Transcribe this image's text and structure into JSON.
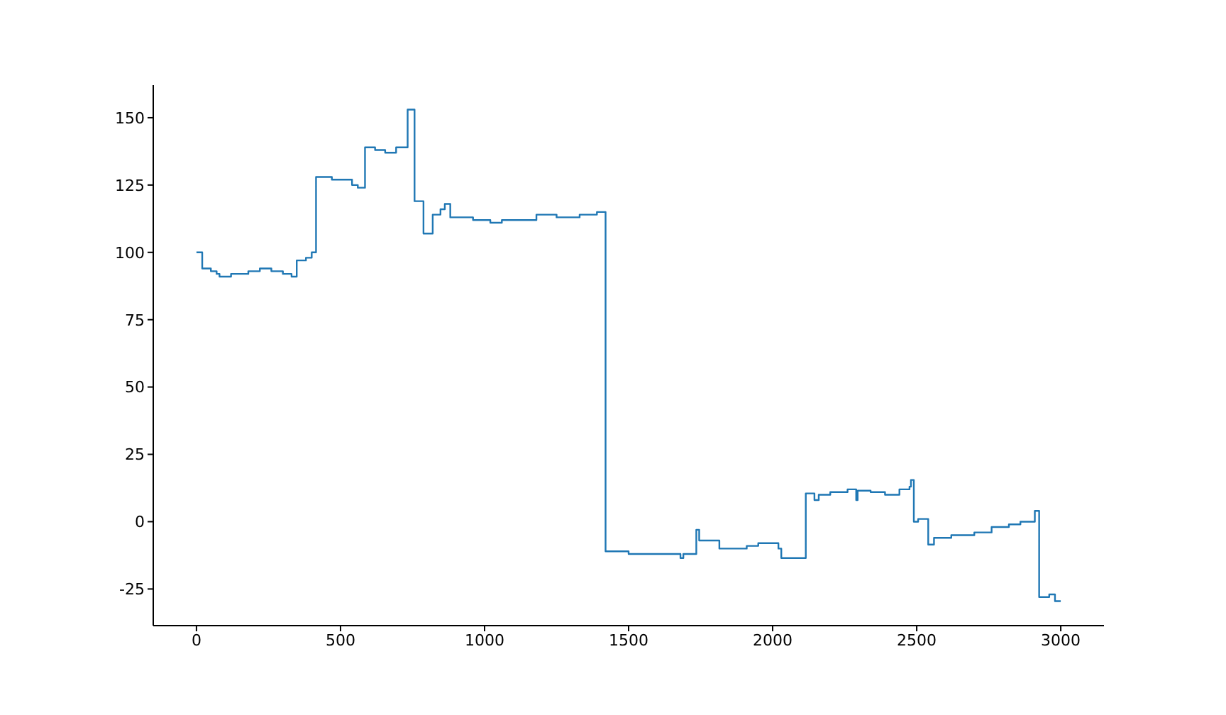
{
  "chart_data": {
    "type": "step",
    "color": "#1f77b4",
    "x": [
      0,
      20,
      50,
      70,
      80,
      120,
      180,
      220,
      260,
      300,
      330,
      338,
      348,
      380,
      400,
      415,
      470,
      525,
      540,
      560,
      585,
      620,
      655,
      693,
      733,
      757,
      788,
      820,
      847,
      862,
      881,
      960,
      1020,
      1060,
      1100,
      1180,
      1250,
      1330,
      1390,
      1420,
      1500,
      1600,
      1680,
      1690,
      1720,
      1735,
      1745,
      1815,
      1910,
      1950,
      2020,
      2030,
      2060,
      2115,
      2145,
      2160,
      2200,
      2260,
      2290,
      2295,
      2340,
      2390,
      2440,
      2475,
      2480,
      2490,
      2505,
      2540,
      2560,
      2620,
      2700,
      2760,
      2820,
      2860,
      2910,
      2925,
      2960,
      2980,
      3000
    ],
    "values": [
      100,
      94,
      93,
      92,
      91,
      92,
      93,
      94,
      93,
      92,
      91,
      91,
      97,
      98,
      100,
      128,
      127,
      127,
      125,
      124,
      139,
      138,
      137,
      139,
      153,
      119,
      107,
      114,
      116,
      118,
      113,
      112,
      111,
      112,
      112,
      114,
      113,
      114,
      115,
      -11,
      -12,
      -12,
      -13.5,
      -12,
      -12,
      -3,
      -7,
      -10,
      -9,
      -8,
      -10,
      -13.5,
      -13.5,
      10.5,
      8,
      10,
      11,
      12,
      8,
      11.5,
      11,
      10,
      12,
      13,
      15.5,
      0,
      1,
      -8.5,
      -6,
      -5,
      -4,
      -2,
      -1,
      0,
      4,
      -28,
      -27,
      -29.5,
      -29.5
    ],
    "xlim": [
      -150,
      3150
    ],
    "ylim": [
      -38.6,
      162.1
    ],
    "xticks": [
      0,
      500,
      1000,
      1500,
      2000,
      2500,
      3000
    ],
    "yticks": [
      -25,
      0,
      25,
      50,
      75,
      100,
      125,
      150
    ],
    "grid": false
  }
}
